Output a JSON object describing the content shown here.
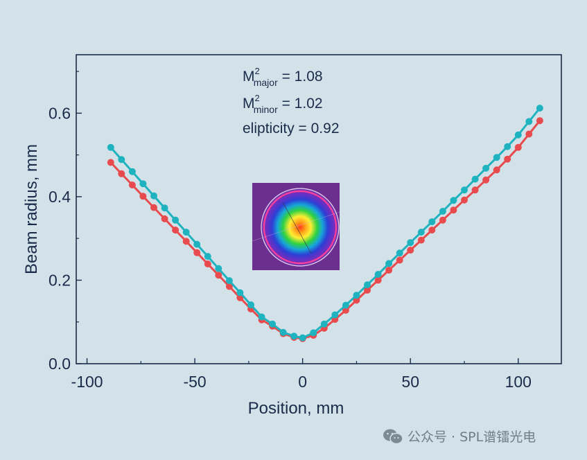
{
  "chart_data": {
    "type": "line",
    "xlabel": "Position, mm",
    "ylabel": "Beam radius, mm",
    "xlim": [
      -105,
      120
    ],
    "ylim": [
      0,
      0.74
    ],
    "xticks": [
      -100,
      -50,
      0,
      50,
      100
    ],
    "xtick_labels": [
      "-100",
      "-50",
      "0",
      "50",
      "100"
    ],
    "yticks": [
      0.0,
      0.2,
      0.4,
      0.6
    ],
    "ytick_labels": [
      "0.0",
      "0.2",
      "0.4",
      "0.6"
    ],
    "grid": false,
    "annotations": {
      "m2_major": {
        "base": "M",
        "sup": "2",
        "sub": "major",
        "rest": " = 1.08"
      },
      "m2_minor": {
        "base": "M",
        "sup": "2",
        "sub": "minor",
        "rest": " = 1.02"
      },
      "ellipticity": "elipticity = 0.92"
    },
    "x": [
      -89,
      -84,
      -79,
      -74,
      -69,
      -64,
      -59,
      -54,
      -49,
      -44,
      -39,
      -34,
      -29,
      -24,
      -19,
      -14,
      -9,
      -4,
      0,
      5,
      10,
      15,
      20,
      25,
      30,
      35,
      40,
      45,
      50,
      55,
      60,
      65,
      70,
      75,
      80,
      85,
      90,
      95,
      100,
      105,
      110
    ],
    "series": [
      {
        "color": "#1eb3bf",
        "values": [
          0.518,
          0.489,
          0.46,
          0.431,
          0.402,
          0.373,
          0.344,
          0.315,
          0.286,
          0.257,
          0.228,
          0.199,
          0.17,
          0.141,
          0.112,
          0.095,
          0.075,
          0.066,
          0.062,
          0.074,
          0.095,
          0.117,
          0.14,
          0.164,
          0.189,
          0.214,
          0.24,
          0.265,
          0.29,
          0.315,
          0.34,
          0.365,
          0.391,
          0.416,
          0.442,
          0.468,
          0.494,
          0.52,
          0.548,
          0.58,
          0.612
        ]
      },
      {
        "color": "#e84b4d",
        "values": [
          0.482,
          0.455,
          0.428,
          0.401,
          0.374,
          0.347,
          0.32,
          0.293,
          0.266,
          0.239,
          0.212,
          0.185,
          0.158,
          0.131,
          0.105,
          0.09,
          0.072,
          0.063,
          0.06,
          0.068,
          0.085,
          0.106,
          0.128,
          0.152,
          0.176,
          0.2,
          0.224,
          0.248,
          0.272,
          0.296,
          0.32,
          0.344,
          0.368,
          0.392,
          0.416,
          0.44,
          0.464,
          0.49,
          0.518,
          0.55,
          0.582
        ]
      }
    ]
  },
  "watermark": {
    "text": "公众号 · SPL谱镭光电",
    "icon": "wechat-icon"
  }
}
